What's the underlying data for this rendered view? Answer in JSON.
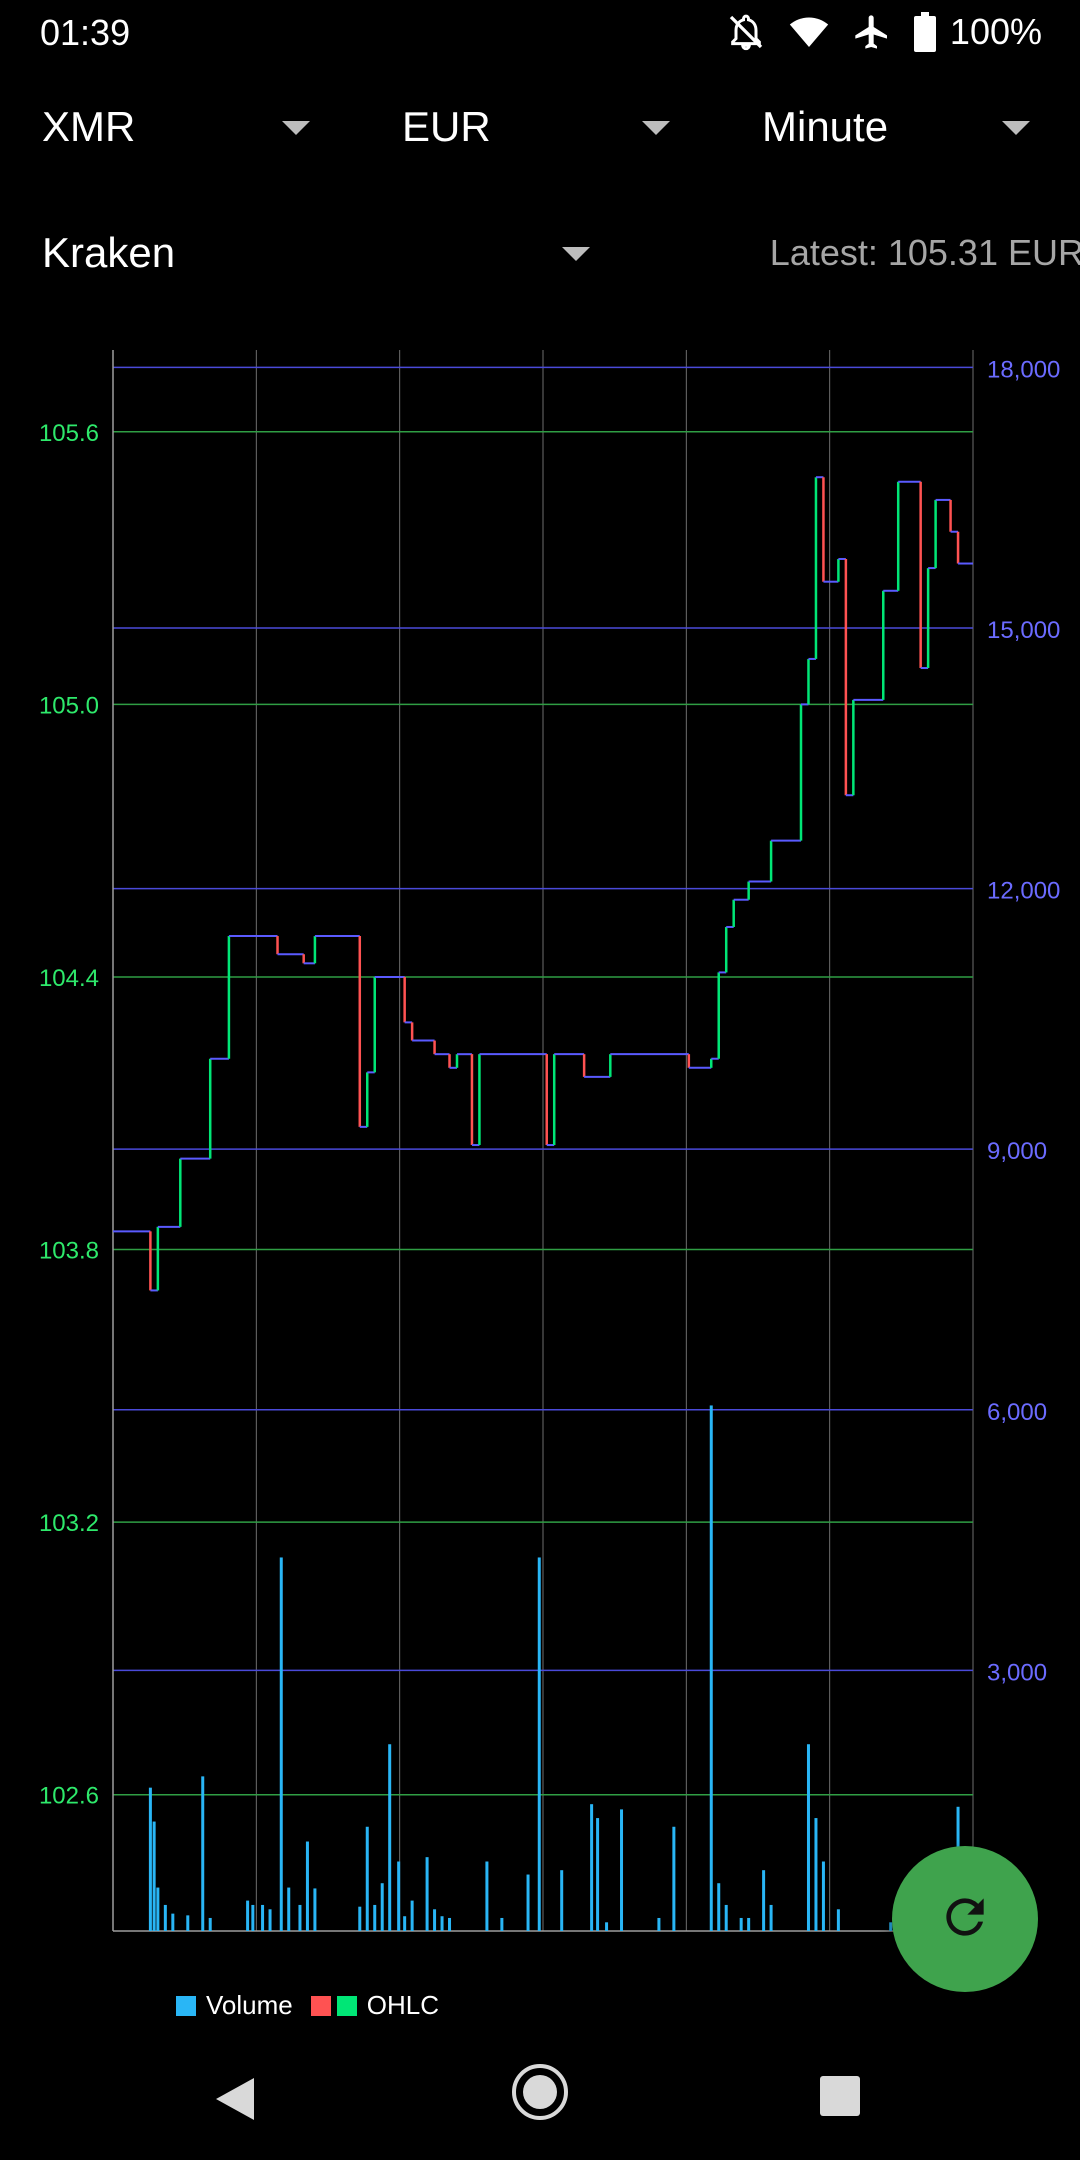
{
  "status": {
    "time": "01:39",
    "battery_pct": "100%",
    "icons": [
      "notifications-off-icon",
      "wifi-icon",
      "airplane-icon",
      "battery-icon"
    ]
  },
  "selectors": {
    "coin": "XMR",
    "currency": "EUR",
    "interval": "Minute",
    "exchange": "Kraken"
  },
  "latest_label": "Latest: 105.31 EUR",
  "legend": {
    "volume": "Volume",
    "ohlc": "OHLC"
  },
  "colors": {
    "up": "#00e676",
    "down": "#ff5252",
    "volume": "#29b6f6",
    "price_axis": "#2ee96b",
    "volume_axis": "#6b6bff",
    "fab": "#3fa34d"
  },
  "fab_icon": "refresh-icon",
  "nav_icons": [
    "back-icon",
    "home-icon",
    "recents-icon"
  ],
  "chart_data": {
    "type": "candlestick",
    "price_axis": {
      "ticks": [
        "102.6",
        "103.2",
        "103.8",
        "104.4",
        "105.0",
        "105.6"
      ],
      "range": [
        102.3,
        105.78
      ]
    },
    "volume_axis": {
      "ticks": [
        "3,000",
        "6,000",
        "9,000",
        "12,000",
        "15,000",
        "18,000"
      ],
      "range": [
        0,
        18200
      ]
    },
    "price_path": [
      [
        0,
        103.84
      ],
      [
        5,
        103.84
      ],
      [
        5,
        103.71
      ],
      [
        6,
        103.71
      ],
      [
        6,
        103.85
      ],
      [
        9,
        103.85
      ],
      [
        9,
        104.0
      ],
      [
        13,
        104.0
      ],
      [
        13,
        104.22
      ],
      [
        15.5,
        104.22
      ],
      [
        15.5,
        104.49
      ],
      [
        22,
        104.49
      ],
      [
        22,
        104.45
      ],
      [
        25.5,
        104.45
      ],
      [
        25.5,
        104.43
      ],
      [
        27,
        104.43
      ],
      [
        27,
        104.49
      ],
      [
        33,
        104.49
      ],
      [
        33,
        104.07
      ],
      [
        34,
        104.07
      ],
      [
        34,
        104.19
      ],
      [
        35,
        104.19
      ],
      [
        35,
        104.4
      ],
      [
        39,
        104.4
      ],
      [
        39,
        104.3
      ],
      [
        40,
        104.3
      ],
      [
        40,
        104.26
      ],
      [
        43,
        104.26
      ],
      [
        43,
        104.23
      ],
      [
        45,
        104.23
      ],
      [
        45,
        104.2
      ],
      [
        46,
        104.2
      ],
      [
        46,
        104.23
      ],
      [
        48,
        104.23
      ],
      [
        48,
        104.03
      ],
      [
        49,
        104.03
      ],
      [
        49,
        104.23
      ],
      [
        58,
        104.23
      ],
      [
        58,
        104.03
      ],
      [
        59,
        104.03
      ],
      [
        59,
        104.23
      ],
      [
        63,
        104.23
      ],
      [
        63,
        104.18
      ],
      [
        66.5,
        104.18
      ],
      [
        66.5,
        104.23
      ],
      [
        77,
        104.23
      ],
      [
        77,
        104.2
      ],
      [
        80,
        104.2
      ],
      [
        80,
        104.22
      ],
      [
        81,
        104.22
      ],
      [
        81,
        104.41
      ],
      [
        82,
        104.41
      ],
      [
        82,
        104.51
      ],
      [
        83,
        104.51
      ],
      [
        83,
        104.57
      ],
      [
        85,
        104.57
      ],
      [
        85,
        104.61
      ],
      [
        88,
        104.61
      ],
      [
        88,
        104.7
      ],
      [
        92,
        104.7
      ],
      [
        92,
        105.0
      ],
      [
        93,
        105.0
      ],
      [
        93,
        105.1
      ],
      [
        94,
        105.1
      ],
      [
        94,
        105.5
      ],
      [
        95,
        105.5
      ],
      [
        95,
        105.27
      ],
      [
        97,
        105.27
      ],
      [
        97,
        105.32
      ],
      [
        98,
        105.32
      ],
      [
        98,
        104.8
      ],
      [
        99,
        104.8
      ],
      [
        99,
        105.01
      ],
      [
        103,
        105.01
      ],
      [
        103,
        105.25
      ],
      [
        105,
        105.25
      ],
      [
        105,
        105.49
      ],
      [
        108,
        105.49
      ],
      [
        108,
        105.08
      ],
      [
        109,
        105.08
      ],
      [
        109,
        105.3
      ],
      [
        110,
        105.3
      ],
      [
        110,
        105.45
      ],
      [
        112,
        105.45
      ],
      [
        112,
        105.38
      ],
      [
        113,
        105.38
      ],
      [
        113,
        105.31
      ],
      [
        115,
        105.31
      ]
    ],
    "volume": [
      [
        5,
        1650
      ],
      [
        5.5,
        1260
      ],
      [
        6,
        500
      ],
      [
        7,
        300
      ],
      [
        8,
        200
      ],
      [
        10,
        180
      ],
      [
        12,
        1780
      ],
      [
        13,
        150
      ],
      [
        18,
        350
      ],
      [
        18.7,
        300
      ],
      [
        20,
        300
      ],
      [
        21,
        250
      ],
      [
        22.5,
        4300
      ],
      [
        23.5,
        500
      ],
      [
        25,
        300
      ],
      [
        26,
        1030
      ],
      [
        27,
        490
      ],
      [
        33,
        280
      ],
      [
        34,
        1200
      ],
      [
        35,
        300
      ],
      [
        36,
        550
      ],
      [
        37,
        2150
      ],
      [
        38.2,
        800
      ],
      [
        39,
        170
      ],
      [
        40,
        350
      ],
      [
        42,
        850
      ],
      [
        43,
        250
      ],
      [
        44,
        170
      ],
      [
        45,
        150
      ],
      [
        50,
        800
      ],
      [
        52,
        150
      ],
      [
        55.5,
        650
      ],
      [
        57,
        4300
      ],
      [
        60,
        700
      ],
      [
        64,
        1460
      ],
      [
        64.8,
        1300
      ],
      [
        66,
        100
      ],
      [
        68,
        1400
      ],
      [
        73,
        150
      ],
      [
        75,
        1200
      ],
      [
        80,
        6050
      ],
      [
        81,
        550
      ],
      [
        82,
        300
      ],
      [
        84,
        150
      ],
      [
        85,
        150
      ],
      [
        87,
        700
      ],
      [
        88,
        300
      ],
      [
        93,
        2150
      ],
      [
        94,
        1300
      ],
      [
        95,
        800
      ],
      [
        97,
        250
      ],
      [
        104,
        100
      ],
      [
        110,
        800
      ],
      [
        113,
        1430
      ]
    ]
  }
}
